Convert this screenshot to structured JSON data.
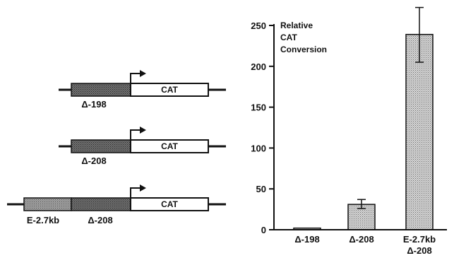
{
  "constructs": [
    {
      "name": "Δ-198",
      "reporter": "CAT",
      "segments": [
        {
          "label": "Δ-198",
          "fill": "stipple-dark"
        }
      ]
    },
    {
      "name": "Δ-208",
      "reporter": "CAT",
      "segments": [
        {
          "label": "Δ-208",
          "fill": "stipple-dark"
        }
      ]
    },
    {
      "name": "E-2.7kb Δ-208",
      "reporter": "CAT",
      "segments": [
        {
          "label": "E-2.7kb",
          "fill": "stipple-light"
        },
        {
          "label": "Δ-208",
          "fill": "stipple-dark"
        }
      ]
    }
  ],
  "chart_data": {
    "type": "bar",
    "title": "Relative CAT Conversion",
    "title_lines": [
      "Relative",
      "CAT",
      "Conversion"
    ],
    "categories": [
      "Δ-198",
      "Δ-208",
      "E-2.7kb Δ-208"
    ],
    "category_lines": [
      [
        "Δ-198"
      ],
      [
        "Δ-208"
      ],
      [
        "E-2.7kb",
        "Δ-208"
      ]
    ],
    "values": [
      2,
      31,
      239
    ],
    "error_bars": [
      {
        "low": 2,
        "high": 2
      },
      {
        "low": 26,
        "high": 37
      },
      {
        "low": 205,
        "high": 272
      }
    ],
    "ylim": [
      0,
      250
    ],
    "yticks": [
      0,
      50,
      100,
      150,
      200,
      250
    ],
    "xlabel": "",
    "ylabel": "",
    "grid": false,
    "legend": "none",
    "bar_fill": "stippled-gray"
  }
}
